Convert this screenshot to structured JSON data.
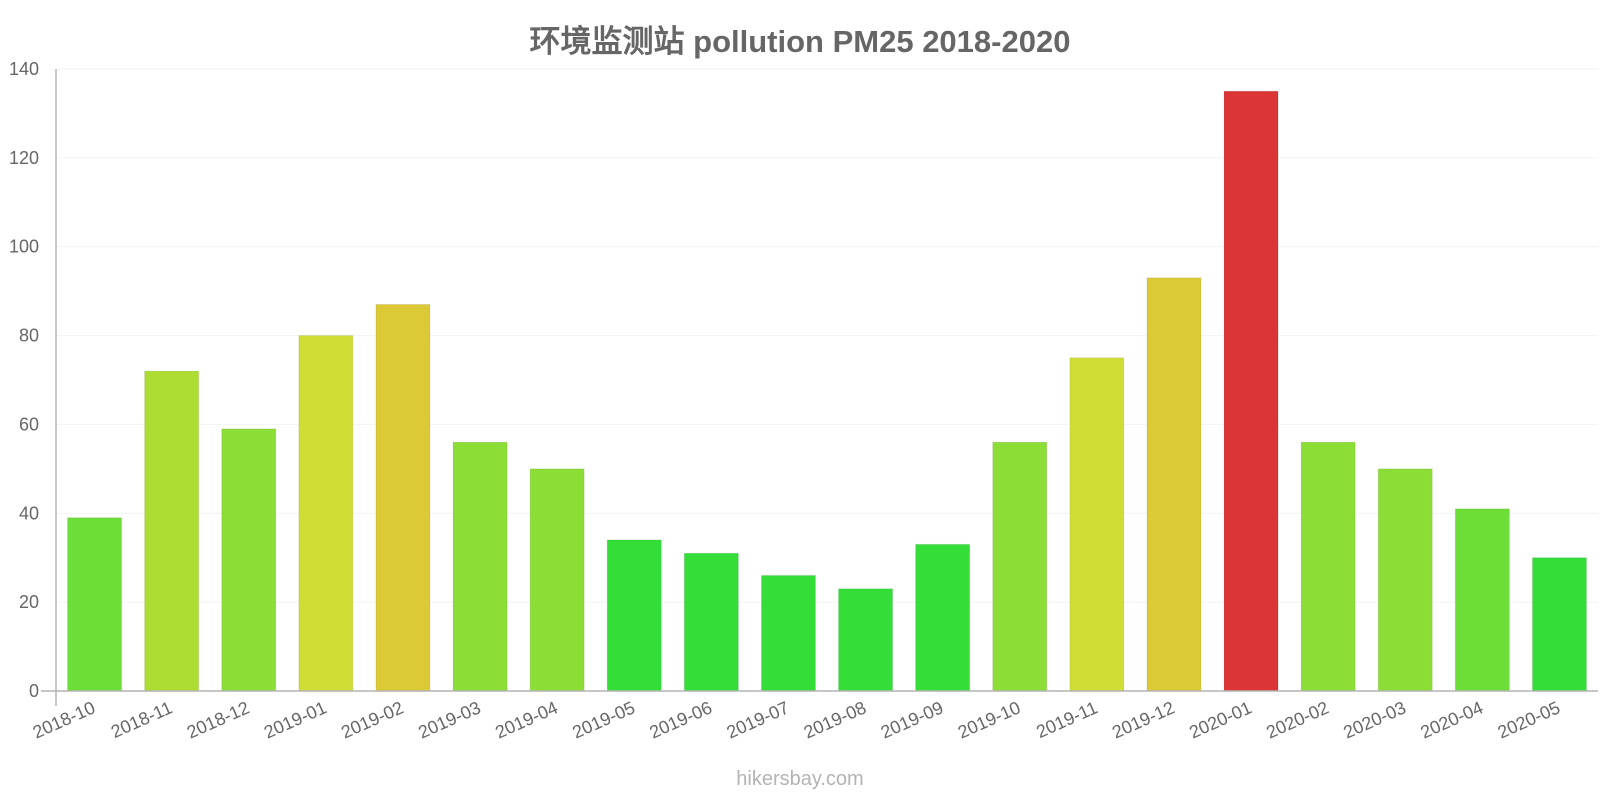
{
  "header": {
    "title": "环境监测站 pollution PM25 2018-2020"
  },
  "footer": {
    "watermark": "hikersbay.com"
  },
  "chart_data": {
    "type": "bar",
    "title": "环境监测站 pollution PM25 2018-2020",
    "xlabel": "",
    "ylabel": "",
    "ylim": [
      0,
      140
    ],
    "yticks": [
      0,
      20,
      40,
      60,
      80,
      100,
      120,
      140
    ],
    "grid": true,
    "legend": "none",
    "categories": [
      "2018-10",
      "2018-11",
      "2018-12",
      "2019-01",
      "2019-02",
      "2019-03",
      "2019-04",
      "2019-05",
      "2019-06",
      "2019-07",
      "2019-08",
      "2019-09",
      "2019-10",
      "2019-11",
      "2019-12",
      "2020-01",
      "2020-02",
      "2020-03",
      "2020-04",
      "2020-05"
    ],
    "values": [
      39,
      72,
      59,
      80,
      87,
      56,
      50,
      34,
      31,
      26,
      23,
      33,
      56,
      75,
      93,
      135,
      56,
      50,
      41,
      30
    ],
    "colors": [
      "#6ddd38",
      "#addd33",
      "#8cdd36",
      "#cfdd35",
      "#dbca35",
      "#8cdd36",
      "#8cdd36",
      "#34dd38",
      "#34dd38",
      "#34dd38",
      "#34dd38",
      "#34dd38",
      "#8cdd36",
      "#cfdd35",
      "#dbca35",
      "#db3535",
      "#8cdd36",
      "#8cdd36",
      "#6ddd38",
      "#34dd38"
    ]
  }
}
